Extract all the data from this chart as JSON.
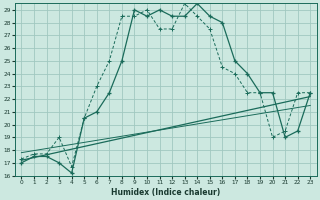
{
  "xlabel": "Humidex (Indice chaleur)",
  "background_color": "#cce8e0",
  "grid_color": "#a0c8c0",
  "line_color": "#1a6b5a",
  "xlim": [
    -0.5,
    23.5
  ],
  "ylim": [
    16,
    29.5
  ],
  "xticks": [
    0,
    1,
    2,
    3,
    4,
    5,
    6,
    7,
    8,
    9,
    10,
    11,
    12,
    13,
    14,
    15,
    16,
    17,
    18,
    19,
    20,
    21,
    22,
    23
  ],
  "yticks": [
    16,
    17,
    18,
    19,
    20,
    21,
    22,
    23,
    24,
    25,
    26,
    27,
    28,
    29
  ],
  "line1_x": [
    0,
    1,
    2,
    3,
    4,
    5,
    6,
    7,
    8,
    9,
    10,
    11,
    12,
    13,
    14,
    15,
    16,
    17,
    18,
    19,
    20,
    21,
    22,
    23
  ],
  "line1_y": [
    17,
    17.5,
    17.5,
    17,
    16.2,
    20.5,
    21.0,
    22.5,
    25.0,
    29.0,
    28.5,
    29.0,
    28.5,
    28.5,
    29.5,
    28.5,
    28.0,
    25.0,
    24.0,
    22.5,
    22.5,
    19.0,
    19.5,
    22.5
  ],
  "line2_x": [
    0,
    1,
    2,
    3,
    4,
    5,
    6,
    7,
    8,
    9,
    10,
    11,
    12,
    13,
    14,
    15,
    16,
    17,
    18,
    19,
    20,
    21,
    22,
    23
  ],
  "line2_y": [
    17.3,
    17.7,
    17.7,
    19.0,
    16.7,
    20.5,
    23.0,
    25.0,
    28.5,
    28.5,
    29.0,
    27.5,
    27.5,
    29.5,
    28.5,
    27.5,
    24.5,
    24.0,
    22.5,
    22.5,
    19.0,
    19.5,
    22.5,
    22.5
  ],
  "line3_x": [
    0,
    23
  ],
  "line3_y": [
    17.2,
    22.2
  ],
  "line4_x": [
    0,
    23
  ],
  "line4_y": [
    17.8,
    21.5
  ]
}
